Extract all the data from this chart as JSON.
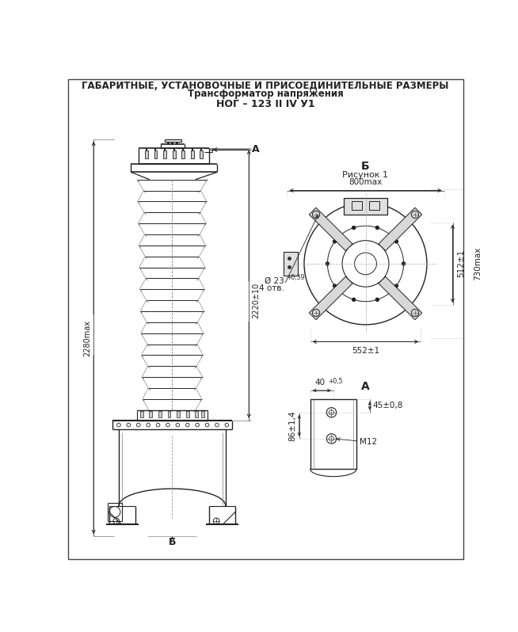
{
  "title_line1": "ГАБАРИТНЫЕ, УСТАНОВОЧНЫЕ И ПРИСОЕДИНИТЕЛЬНЫЕ РАЗМЕРЫ",
  "title_line2": "Трансформатор напряжения",
  "title_line3": "НОГ – 123 II IV У1",
  "bg_color": "#ffffff",
  "line_color": "#222222",
  "label_B": "Б",
  "label_A": "А",
  "label_risunok": "Рисунок 1",
  "dim_800": "800max",
  "dim_552": "552±1",
  "dim_512": "512±1",
  "dim_730": "730max",
  "dim_2280": "2280max",
  "dim_2220": "2220±10",
  "dim_23": "Ø 23",
  "dim_23_tol": "+0,39",
  "dim_4otv": "4 отв.",
  "dim_40": "40",
  "dim_40_tol": "+0,5",
  "dim_45": "45±0,8",
  "dim_86": "86±1,4",
  "dim_M12": "M12"
}
